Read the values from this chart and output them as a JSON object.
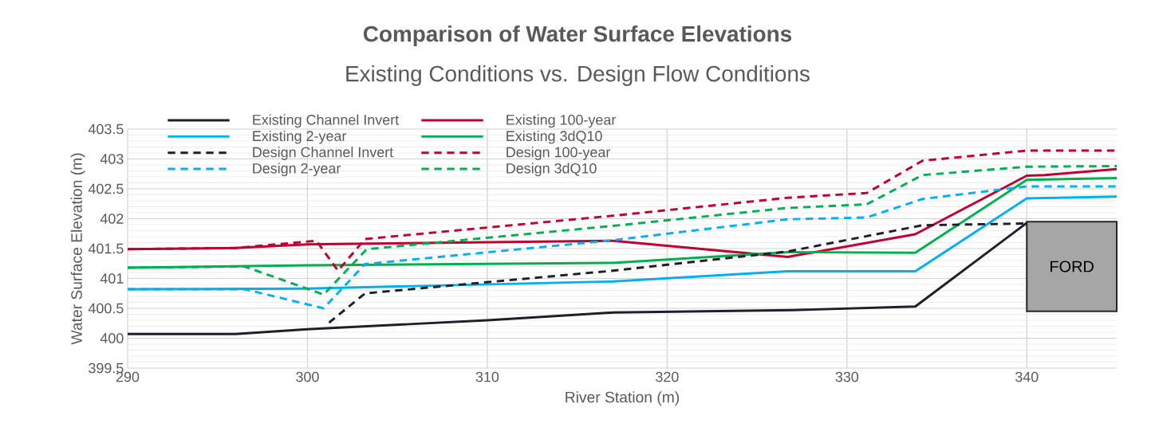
{
  "chart_data": {
    "type": "line",
    "title": "Comparison of Water Surface Elevations",
    "subtitle": "Existing Conditions vs. Design Flow Conditions",
    "xlabel": "River Station (m)",
    "ylabel": "Water Surface Elevation (m)",
    "xlim": [
      290,
      345
    ],
    "ylim": [
      399.5,
      403.5
    ],
    "xticks": [
      290,
      300,
      310,
      320,
      330,
      340
    ],
    "yticks": [
      399.5,
      400,
      400.5,
      401,
      401.5,
      402,
      402.5,
      403,
      403.5
    ],
    "grid": true,
    "legend": "top left",
    "marker": "none",
    "bands": [
      {
        "axis": "x",
        "from": 340,
        "to": 345,
        "label": "FORD",
        "color": "#a6a6a6"
      }
    ],
    "series": [
      {
        "name": "Existing Channel Invert",
        "color": "#1f1f2b",
        "line_style": "solid",
        "x": [
          290,
          296,
          300,
          310,
          317,
          327,
          333.8,
          340
        ],
        "values": [
          400.07,
          400.07,
          400.15,
          400.3,
          400.43,
          400.47,
          400.53,
          401.93
        ]
      },
      {
        "name": "Existing 100-year",
        "color": "#c00030",
        "line_style": "solid",
        "x": [
          290,
          296,
          300,
          317,
          326.7,
          333.8,
          340,
          341,
          345
        ],
        "values": [
          401.49,
          401.51,
          401.57,
          401.63,
          401.36,
          401.74,
          402.72,
          402.73,
          402.83
        ]
      },
      {
        "name": "Existing 2-year",
        "color": "#00b0f0",
        "line_style": "solid",
        "x": [
          290,
          300,
          317,
          326.7,
          333.8,
          340,
          345
        ],
        "values": [
          400.82,
          400.83,
          400.95,
          401.12,
          401.12,
          402.34,
          402.37
        ]
      },
      {
        "name": "Existing 3dQ10",
        "color": "#00b050",
        "line_style": "solid",
        "x": [
          290,
          300,
          317,
          326.7,
          333.8,
          340,
          345
        ],
        "values": [
          401.18,
          401.22,
          401.26,
          401.44,
          401.43,
          402.65,
          402.68
        ]
      },
      {
        "name": "Design Channel Invert",
        "color": "#1f1f2b",
        "line_style": "dashed",
        "x": [
          301.2,
          303.2,
          317,
          326.7,
          334.2,
          340
        ],
        "values": [
          400.26,
          400.75,
          401.13,
          401.45,
          401.89,
          401.92
        ]
      },
      {
        "name": "Design 100-year",
        "color": "#c00030",
        "line_style": "dashed",
        "x": [
          290,
          296,
          300.5,
          301.7,
          303.2,
          317,
          326.7,
          331.1,
          334.2,
          340,
          345
        ],
        "values": [
          401.49,
          401.51,
          401.63,
          401.13,
          401.66,
          402.05,
          402.35,
          402.43,
          402.97,
          403.14,
          403.14
        ]
      },
      {
        "name": "Design 2-year",
        "color": "#00b0f0",
        "line_style": "dashed",
        "x": [
          290,
          296.5,
          300.9,
          303.2,
          317,
          326.7,
          331.1,
          334.2,
          340,
          345
        ],
        "values": [
          400.82,
          400.82,
          400.5,
          401.24,
          401.64,
          401.99,
          402.02,
          402.33,
          402.54,
          402.54
        ]
      },
      {
        "name": "Design 3dQ10",
        "color": "#00b050",
        "line_style": "dashed",
        "x": [
          290,
          296.5,
          300.9,
          303.3,
          317,
          326.7,
          331.1,
          334.2,
          340,
          345
        ],
        "values": [
          401.18,
          401.2,
          400.73,
          401.49,
          401.88,
          402.18,
          402.24,
          402.73,
          402.87,
          402.88
        ]
      }
    ]
  }
}
